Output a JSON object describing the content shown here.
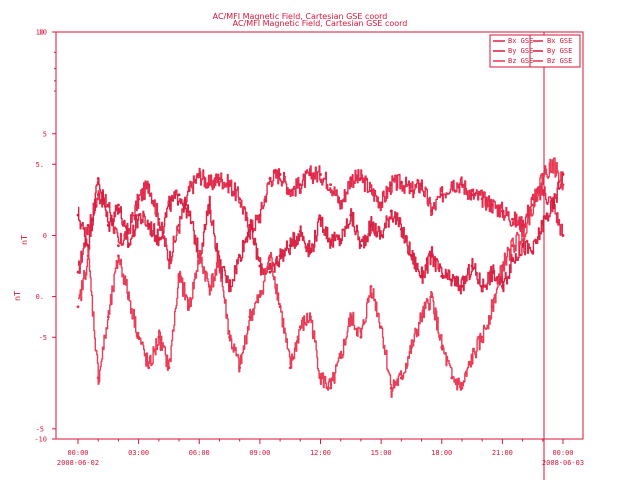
{
  "colors": {
    "axis": "#d8163a",
    "bx": "#e02244",
    "by": "#d81a3c",
    "bz": "#e8344e"
  },
  "chart_data": {
    "type": "line",
    "title": "AC/MFI  Magnetic Field, Cartesian GSE coord",
    "title_ghost": "AC/MFI  Magnetic Field, Cartesian GSE coord",
    "ylabel": "nT",
    "ylabel_ghost": "nT",
    "xlim": [
      "2008-06-02 00:00",
      "2008-06-03 00:00"
    ],
    "ylim": [
      -10,
      10
    ],
    "y_ticks": [
      {
        "value": 10,
        "label": "10"
      },
      {
        "value": 5,
        "label": "5"
      },
      {
        "value": 0,
        "label": "0"
      },
      {
        "value": -5,
        "label": "-5"
      },
      {
        "value": -10,
        "label": "-10"
      }
    ],
    "y_ghost_ticks": [
      {
        "value": 10,
        "label": "10"
      },
      {
        "value": 3.5,
        "label": "5."
      },
      {
        "value": -3,
        "label": "0."
      },
      {
        "value": -9.5,
        "label": "-5"
      }
    ],
    "x_ticks": [
      {
        "hour": 0,
        "label": "00:00",
        "date": "2008-06-02"
      },
      {
        "hour": 3,
        "label": "03:00",
        "date": ""
      },
      {
        "hour": 6,
        "label": "06:00",
        "date": ""
      },
      {
        "hour": 9,
        "label": "09:00",
        "date": ""
      },
      {
        "hour": 12,
        "label": "12:00",
        "date": ""
      },
      {
        "hour": 15,
        "label": "15:00",
        "date": ""
      },
      {
        "hour": 18,
        "label": "18:00",
        "date": ""
      },
      {
        "hour": 21,
        "label": "21:00",
        "date": ""
      },
      {
        "hour": 24,
        "label": "00:00",
        "date": "2008-06-03"
      }
    ],
    "legend": {
      "placement": "top-right",
      "entries": [
        "Bx GSE",
        "By GSE",
        "Bz GSE"
      ],
      "ghost_entries": [
        "Bx GSE",
        "By GSE",
        "Bz GSE"
      ]
    },
    "series": [
      {
        "name": "Bx GSE",
        "color": "#e02244",
        "x": [
          0,
          0.5,
          1,
          1.5,
          2,
          2.5,
          3,
          3.5,
          4,
          4.5,
          5,
          5.5,
          6,
          6.5,
          7,
          7.5,
          8,
          8.5,
          9,
          9.5,
          10,
          10.5,
          11,
          11.5,
          12,
          12.5,
          13,
          13.5,
          14,
          14.5,
          15,
          15.5,
          16,
          16.5,
          17,
          17.5,
          18,
          18.5,
          19,
          19.5,
          20,
          20.5,
          21,
          21.5,
          22,
          22.5,
          23,
          23.5,
          24
        ],
        "y": [
          -1.8,
          0.5,
          2.0,
          1.5,
          -0.5,
          0.3,
          1.8,
          2.5,
          0.8,
          -1.2,
          0.5,
          2.2,
          3.0,
          2.5,
          2.8,
          2.5,
          1.8,
          0.2,
          1.0,
          2.8,
          3.0,
          2.2,
          2.5,
          3.0,
          3.0,
          2.5,
          1.5,
          2.8,
          2.8,
          2.2,
          1.6,
          2.5,
          2.6,
          2.2,
          2.5,
          1.2,
          2.0,
          2.6,
          2.5,
          2.0,
          1.8,
          1.5,
          1.2,
          0.8,
          0.5,
          1.8,
          2.2,
          1.5,
          0.0
        ]
      },
      {
        "name": "By GSE",
        "color": "#d81a3c",
        "x": [
          0,
          0.5,
          1,
          1.5,
          2,
          2.5,
          3,
          3.5,
          4,
          4.5,
          5,
          5.5,
          6,
          6.5,
          7,
          7.5,
          8,
          8.5,
          9,
          9.5,
          10,
          10.5,
          11,
          11.5,
          12,
          12.5,
          13,
          13.5,
          14,
          14.5,
          15,
          15.5,
          16,
          16.5,
          17,
          17.5,
          18,
          18.5,
          19,
          19.5,
          20,
          20.5,
          21,
          21.5,
          22,
          22.5,
          23,
          23.5,
          24
        ],
        "y": [
          1.0,
          -0.5,
          2.8,
          0.5,
          1.5,
          -0.5,
          1.0,
          0.5,
          -0.2,
          1.5,
          2.0,
          1.0,
          -1.0,
          1.5,
          -1.5,
          -2.5,
          -1.0,
          0.5,
          -1.5,
          -1.8,
          -1.0,
          -0.5,
          0.2,
          -0.8,
          0.8,
          -0.3,
          -0.2,
          1.0,
          -0.5,
          0.5,
          0.0,
          1.2,
          0.3,
          -1.0,
          -2.0,
          -1.0,
          -2.0,
          -2.2,
          -2.5,
          -1.5,
          -2.5,
          -1.8,
          -2.5,
          -1.2,
          -0.5,
          -0.8,
          0.6,
          1.5,
          3.0
        ]
      },
      {
        "name": "Bz GSE",
        "color": "#e8344e",
        "x": [
          0,
          0.5,
          1,
          1.5,
          2,
          2.5,
          3,
          3.5,
          4,
          4.5,
          5,
          5.5,
          6,
          6.5,
          7,
          7.5,
          8,
          8.5,
          9,
          9.5,
          10,
          10.5,
          11,
          11.5,
          12,
          12.5,
          13,
          13.5,
          14,
          14.5,
          15,
          15.5,
          16,
          16.5,
          17,
          17.5,
          18,
          18.5,
          19,
          19.5,
          20,
          20.5,
          21,
          21.5,
          22,
          22.5,
          23,
          23.5,
          24
        ],
        "y": [
          -3.5,
          -1.0,
          -7.0,
          -4.0,
          -1.0,
          -3.0,
          -5.0,
          -6.5,
          -5.0,
          -6.5,
          -2.0,
          -3.5,
          -1.0,
          -2.5,
          -1.5,
          -5.0,
          -6.5,
          -4.0,
          -3.0,
          -1.0,
          -3.5,
          -6.5,
          -4.5,
          -4.0,
          -7.0,
          -7.5,
          -6.0,
          -4.0,
          -5.0,
          -2.5,
          -4.5,
          -7.5,
          -7.0,
          -5.5,
          -4.0,
          -3.0,
          -5.5,
          -7.0,
          -7.5,
          -6.0,
          -5.0,
          -3.5,
          -1.5,
          -0.5,
          0.0,
          1.5,
          3.0,
          3.5,
          2.5
        ]
      }
    ]
  }
}
